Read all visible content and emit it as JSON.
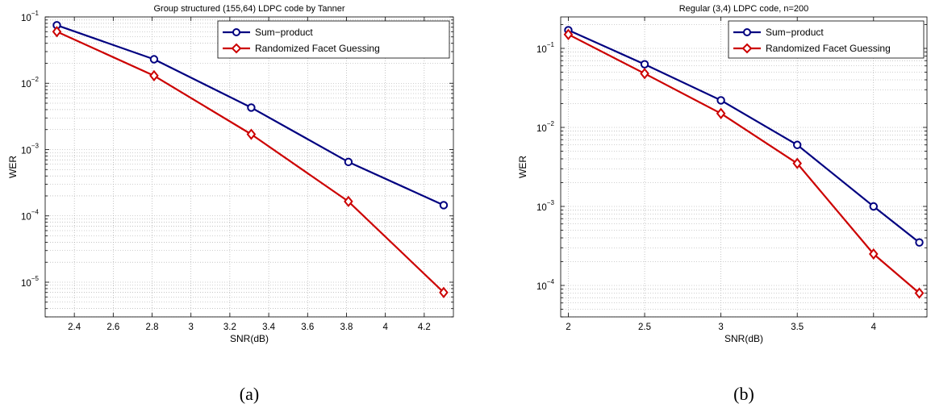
{
  "chart_data": [
    {
      "panel": "a",
      "caption": "(a)",
      "type": "line",
      "title": "Group structured (155,64) LDPC code by Tanner",
      "xlabel": "SNR(dB)",
      "ylabel": "WER",
      "xlim": [
        2.25,
        4.35
      ],
      "ylim": [
        3e-06,
        0.1
      ],
      "yscale": "log",
      "xticks": [
        2.4,
        2.6,
        2.8,
        3,
        3.2,
        3.4,
        3.6,
        3.8,
        4,
        4.2
      ],
      "xticklabels": [
        "2.4",
        "2.6",
        "2.8",
        "3",
        "3.2",
        "3.4",
        "3.6",
        "3.8",
        "4",
        "4.2"
      ],
      "yticks": [
        1e-05,
        0.0001,
        0.001,
        0.01,
        0.1
      ],
      "yticklabels": [
        {
          "base": "10",
          "exp": "−5"
        },
        {
          "base": "10",
          "exp": "−4"
        },
        {
          "base": "10",
          "exp": "−3"
        },
        {
          "base": "10",
          "exp": "−2"
        },
        {
          "base": "10",
          "exp": "−1"
        }
      ],
      "grid": true,
      "legend_position": "top-right",
      "series": [
        {
          "name": "Sum−product",
          "color": "#000080",
          "marker": "circle",
          "x": [
            2.31,
            2.81,
            3.31,
            3.81,
            4.3
          ],
          "y": [
            0.075,
            0.023,
            0.0043,
            0.00065,
            0.000145
          ]
        },
        {
          "name": "Randomized Facet Guessing",
          "color": "#cc0000",
          "marker": "diamond",
          "x": [
            2.31,
            2.81,
            3.31,
            3.81,
            4.3
          ],
          "y": [
            0.06,
            0.013,
            0.0017,
            0.000165,
            7e-06
          ]
        }
      ]
    },
    {
      "panel": "b",
      "caption": "(b)",
      "type": "line",
      "title": "Regular (3,4) LDPC code, n=200",
      "xlabel": "SNR(dB)",
      "ylabel": "WER",
      "xlim": [
        1.95,
        4.35
      ],
      "ylim": [
        4e-05,
        0.25
      ],
      "yscale": "log",
      "xticks": [
        2,
        2.5,
        3,
        3.5,
        4
      ],
      "xticklabels": [
        "2",
        "2.5",
        "3",
        "3.5",
        "4"
      ],
      "yticks": [
        0.0001,
        0.001,
        0.01,
        0.1
      ],
      "yticklabels": [
        {
          "base": "10",
          "exp": "−4"
        },
        {
          "base": "10",
          "exp": "−3"
        },
        {
          "base": "10",
          "exp": "−2"
        },
        {
          "base": "10",
          "exp": "−1"
        }
      ],
      "grid": true,
      "legend_position": "top-right",
      "series": [
        {
          "name": "Sum−product",
          "color": "#000080",
          "marker": "circle",
          "x": [
            2,
            2.5,
            3,
            3.5,
            4,
            4.3
          ],
          "y": [
            0.17,
            0.063,
            0.022,
            0.006,
            0.001,
            0.00035
          ]
        },
        {
          "name": "Randomized Facet Guessing",
          "color": "#cc0000",
          "marker": "diamond",
          "x": [
            2,
            2.5,
            3,
            3.5,
            4,
            4.3
          ],
          "y": [
            0.15,
            0.048,
            0.015,
            0.0035,
            0.00025,
            8e-05
          ]
        }
      ]
    }
  ]
}
